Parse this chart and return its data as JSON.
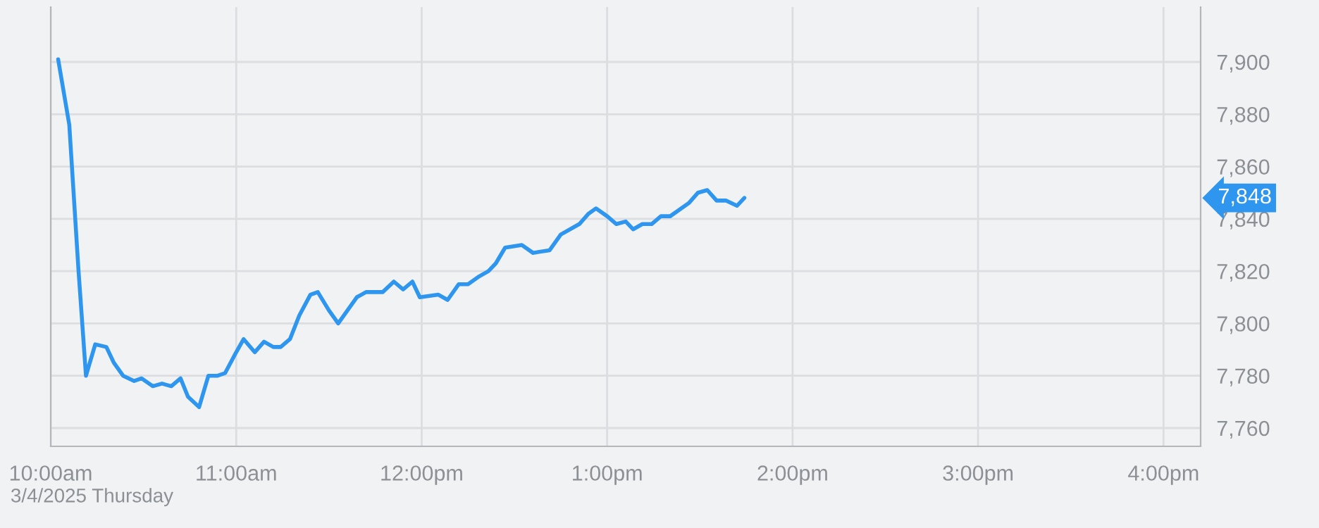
{
  "chart_data": {
    "type": "line",
    "x": [
      10.04,
      10.1,
      10.15,
      10.19,
      10.24,
      10.3,
      10.34,
      10.39,
      10.45,
      10.49,
      10.55,
      10.6,
      10.65,
      10.7,
      10.74,
      10.8,
      10.85,
      10.9,
      10.94,
      11.0,
      11.04,
      11.1,
      11.15,
      11.2,
      11.24,
      11.29,
      11.34,
      11.4,
      11.44,
      11.5,
      11.55,
      11.6,
      11.65,
      11.7,
      11.75,
      11.79,
      11.85,
      11.9,
      11.95,
      11.99,
      12.09,
      12.14,
      12.2,
      12.25,
      12.31,
      12.36,
      12.4,
      12.45,
      12.54,
      12.6,
      12.69,
      12.75,
      12.85,
      12.9,
      12.94,
      13.0,
      13.05,
      13.1,
      13.14,
      13.19,
      13.24,
      13.29,
      13.34,
      13.44,
      13.49,
      13.54,
      13.59,
      13.64,
      13.7,
      13.74
    ],
    "series": [
      {
        "color": "#2e96ee",
        "values": [
          7901,
          7876,
          7820,
          7780,
          7792,
          7791,
          7785,
          7780,
          7778,
          7779,
          7776,
          7777,
          7776,
          7779,
          7772,
          7768,
          7780,
          7780,
          7781,
          7789,
          7794,
          7789,
          7793,
          7791,
          7791,
          7794,
          7803,
          7811,
          7812,
          7805,
          7800,
          7805,
          7810,
          7812,
          7812,
          7812,
          7816,
          7813,
          7816,
          7810,
          7811,
          7809,
          7815,
          7815,
          7818,
          7820,
          7823,
          7829,
          7830,
          7827,
          7828,
          7834,
          7838,
          7842,
          7844,
          7841,
          7838,
          7839,
          7836,
          7838,
          7838,
          7841,
          7841,
          7846,
          7850,
          7851,
          7847,
          7847,
          7845,
          7848
        ]
      }
    ],
    "xlim": [
      10,
      16.2
    ],
    "xticks": [
      {
        "value": 10,
        "label": "10:00am"
      },
      {
        "value": 11,
        "label": "11:00am"
      },
      {
        "value": 12,
        "label": "12:00pm"
      },
      {
        "value": 13,
        "label": "1:00pm"
      },
      {
        "value": 14,
        "label": "2:00pm"
      },
      {
        "value": 15,
        "label": "3:00pm"
      },
      {
        "value": 16,
        "label": "4:00pm"
      }
    ],
    "ylim": [
      7753,
      7921
    ],
    "yticks": [
      {
        "value": 7760,
        "label": "7,760"
      },
      {
        "value": 7780,
        "label": "7,780"
      },
      {
        "value": 7800,
        "label": "7,800"
      },
      {
        "value": 7820,
        "label": "7,820"
      },
      {
        "value": 7840,
        "label": "7,840"
      },
      {
        "value": 7860,
        "label": "7,860"
      },
      {
        "value": 7880,
        "label": "7,880"
      },
      {
        "value": 7900,
        "label": "7,900"
      }
    ],
    "grid": true,
    "annotations": [
      "3/4/2025 Thursday",
      "7,848"
    ]
  }
}
